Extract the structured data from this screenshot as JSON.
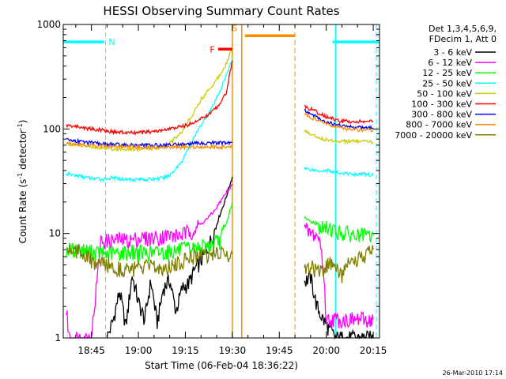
{
  "chart_data": {
    "type": "line",
    "title": "HESSI Observing Summary Count Rates",
    "xlabel": "Start Time (06-Feb-04 18:36:22)",
    "ylabel_main": "Count Rate (s",
    "ylabel_sup1": "-1",
    "ylabel_mid": " detector",
    "ylabel_sup2": "-1",
    "ylabel_end": ")",
    "yscale": "log",
    "ylim": [
      1,
      1000
    ],
    "xlim_minutes": [
      -54,
      47
    ],
    "x_ticks": [
      {
        "m": -45,
        "label": "18:45"
      },
      {
        "m": -30,
        "label": "19:00"
      },
      {
        "m": -15,
        "label": "19:15"
      },
      {
        "m": 0,
        "label": "19:30"
      },
      {
        "m": 15,
        "label": "19:45"
      },
      {
        "m": 30,
        "label": "20:00"
      },
      {
        "m": 45,
        "label": "20:15"
      }
    ],
    "y_ticks": [
      {
        "v": 1,
        "label": "1"
      },
      {
        "v": 10,
        "label": "10"
      },
      {
        "v": 100,
        "label": "100"
      },
      {
        "v": 1000,
        "label": "1000"
      }
    ],
    "legend_header": [
      "Det 1,3,4,5,6,9,",
      "FDecim 1, Att 0"
    ],
    "legend_placement": "right",
    "series": [
      {
        "name": "3 - 6 keV",
        "color": "#000000",
        "x": [
          -53,
          -40,
          -38,
          -36,
          -34,
          -32,
          -30,
          -28,
          -26,
          -24,
          -22,
          -20,
          -18,
          -16,
          -14,
          -12,
          -10,
          -8,
          -6,
          -4,
          -2,
          -1,
          0,
          23,
          25,
          27,
          29,
          31,
          33,
          35,
          37,
          39,
          41,
          43,
          45
        ],
        "y": [
          1.0,
          1.0,
          1.5,
          2.8,
          1.3,
          4.0,
          2.2,
          1.5,
          3.5,
          1.4,
          3.0,
          3.6,
          1.8,
          3.0,
          3.3,
          4.5,
          5.5,
          7,
          10,
          15,
          22,
          28,
          35,
          3.5,
          3.8,
          2.0,
          1.5,
          1.2,
          1.0,
          1.0,
          1.0,
          1.0,
          1.0,
          1.0,
          1.0
        ]
      },
      {
        "name": "6 - 12 keV",
        "color": "#ff00ff",
        "x": [
          -53,
          -52,
          -51,
          -50,
          -48,
          -45,
          -42,
          -39,
          -36,
          -33,
          -30,
          -27,
          -24,
          -21,
          -18,
          -15,
          -12,
          -9,
          -6,
          -3,
          0,
          23,
          25,
          27,
          28,
          29,
          30,
          32,
          35,
          38,
          41,
          44,
          45
        ],
        "y": [
          1.8,
          1.0,
          1.0,
          1.0,
          1.0,
          1.0,
          8.5,
          8.5,
          8.8,
          8.6,
          9.0,
          9.0,
          9.2,
          9.6,
          9.5,
          10,
          11,
          13,
          16,
          22,
          30,
          11,
          10,
          9.5,
          8.5,
          5,
          1.5,
          1.5,
          1.5,
          1.5,
          1.5,
          1.5,
          1.5
        ]
      },
      {
        "name": "12 - 25 keV",
        "color": "#00ff00",
        "x": [
          -53,
          -48,
          -44,
          -40,
          -36,
          -32,
          -28,
          -24,
          -20,
          -16,
          -12,
          -8,
          -4,
          -2,
          0,
          23,
          25,
          27,
          29,
          31,
          33,
          35,
          37,
          39,
          41,
          43,
          45
        ],
        "y": [
          7,
          7,
          6.6,
          6.4,
          6.5,
          6.7,
          6.5,
          6.6,
          6.8,
          7,
          7.2,
          7.6,
          8.5,
          12,
          20,
          14,
          13,
          12.5,
          11,
          11.5,
          10.5,
          10,
          10,
          9.5,
          9.5,
          9.5,
          9.5
        ]
      },
      {
        "name": "25 - 50 keV",
        "color": "#00ffff",
        "x": [
          -53,
          -50,
          -46,
          -42,
          -38,
          -34,
          -30,
          -26,
          -22,
          -20,
          -18,
          -16,
          -14,
          -12,
          -10,
          -8,
          -6,
          -4,
          -2,
          0,
          23,
          25,
          27,
          29,
          31,
          33,
          35,
          37,
          39,
          41,
          43,
          45
        ],
        "y": [
          37,
          36,
          34,
          33,
          34,
          33,
          33,
          33,
          34,
          36,
          42,
          50,
          65,
          85,
          110,
          135,
          170,
          230,
          320,
          480,
          42,
          41,
          40,
          40,
          40,
          38,
          38,
          37,
          37,
          37,
          37,
          36
        ]
      },
      {
        "name": "50 - 100 keV",
        "color": "#cccc00",
        "x": [
          -53,
          -50,
          -46,
          -42,
          -38,
          -34,
          -30,
          -26,
          -22,
          -20,
          -18,
          -16,
          -14,
          -12,
          -10,
          -8,
          -6,
          -4,
          -2,
          0,
          23,
          25,
          27,
          29,
          31,
          33,
          35,
          37,
          39,
          41,
          43,
          45
        ],
        "y": [
          72,
          70,
          68,
          66,
          65,
          64,
          64,
          65,
          68,
          72,
          84,
          95,
          120,
          150,
          190,
          230,
          270,
          330,
          420,
          600,
          95,
          90,
          85,
          80,
          78,
          77,
          77,
          76,
          76,
          76,
          75,
          75
        ]
      },
      {
        "name": "100 - 300 keV",
        "color": "#ff0000",
        "x": [
          -53,
          -50,
          -46,
          -42,
          -38,
          -34,
          -30,
          -26,
          -22,
          -18,
          -14,
          -12,
          -10,
          -8,
          -6,
          -4,
          -2,
          0,
          23,
          25,
          27,
          29,
          31,
          33,
          35,
          37,
          39,
          41,
          43,
          45
        ],
        "y": [
          108,
          106,
          101,
          98,
          94,
          92,
          92,
          94,
          97,
          103,
          110,
          118,
          125,
          135,
          150,
          175,
          220,
          450,
          165,
          155,
          145,
          135,
          128,
          122,
          118,
          118,
          118,
          118,
          118,
          118
        ]
      },
      {
        "name": "300 - 800 keV",
        "color": "#0000ff",
        "x": [
          -53,
          -50,
          -46,
          -42,
          -38,
          -34,
          -30,
          -26,
          -22,
          -18,
          -14,
          -10,
          -6,
          -2,
          0,
          23,
          25,
          27,
          29,
          31,
          33,
          35,
          37,
          39,
          41,
          43,
          45
        ],
        "y": [
          79,
          77,
          74,
          72,
          71,
          70,
          70,
          70,
          70,
          71,
          72,
          73,
          74,
          73,
          74,
          150,
          140,
          130,
          120,
          115,
          110,
          108,
          105,
          104,
          103,
          102,
          102
        ]
      },
      {
        "name": "800 - 7000 keV",
        "color": "#ff8c00",
        "x": [
          -53,
          -50,
          -46,
          -42,
          -38,
          -34,
          -30,
          -26,
          -22,
          -18,
          -14,
          -10,
          -6,
          -2,
          0,
          23,
          25,
          27,
          29,
          31,
          33,
          35,
          37,
          39,
          41,
          43,
          45
        ],
        "y": [
          74,
          72,
          70,
          69,
          68,
          68,
          67,
          67,
          67,
          67,
          67,
          68,
          67,
          67,
          67,
          140,
          130,
          120,
          115,
          110,
          105,
          102,
          100,
          99,
          98,
          98,
          98
        ]
      },
      {
        "name": "7000 - 20000 keV",
        "color": "#808000",
        "x": [
          -53,
          -50,
          -47,
          -44,
          -41,
          -38,
          -35,
          -32,
          -29,
          -26,
          -23,
          -20,
          -17,
          -14,
          -11,
          -8,
          -5,
          -2,
          0,
          23,
          25,
          27,
          29,
          31,
          33,
          35,
          37,
          39,
          41,
          43,
          45
        ],
        "y": [
          7.2,
          7.0,
          6.4,
          5.0,
          5.2,
          4.8,
          4.6,
          4.6,
          4.7,
          4.8,
          4.6,
          5.0,
          5.2,
          6.0,
          6.2,
          6.3,
          6.4,
          6.4,
          6.3,
          4.6,
          4.8,
          4.5,
          4.3,
          5.2,
          4.6,
          4.0,
          5.0,
          5.2,
          5.8,
          6.4,
          7.0
        ]
      }
    ],
    "annotations": {
      "flags": [
        {
          "label": "N",
          "color": "#00ffff",
          "level": 680,
          "segments": [
            [
              -54,
              -41
            ],
            [
              32,
              47
            ]
          ]
        },
        {
          "label": "F",
          "color": "#ff0000",
          "level": 580,
          "segments": [
            [
              -4.5,
              0
            ]
          ]
        },
        {
          "label": "S",
          "color": "#ff8c00",
          "level": 780,
          "segments": [
            [
              4,
              20
            ]
          ]
        }
      ],
      "solid_vlines": [
        {
          "m": 0,
          "color": "#ff8c00"
        },
        {
          "m": 3,
          "color": "#ff8c00"
        },
        {
          "m": 33,
          "color": "#00ffff"
        }
      ],
      "dashed_vlines": [
        {
          "m": -40.5,
          "color": "#00ffff"
        },
        {
          "m": 20,
          "color": "#ff8c00"
        },
        {
          "m": 46,
          "color": "#00ffff"
        }
      ]
    }
  },
  "footer": {
    "timestamp": "26-Mar-2010 17:14"
  }
}
